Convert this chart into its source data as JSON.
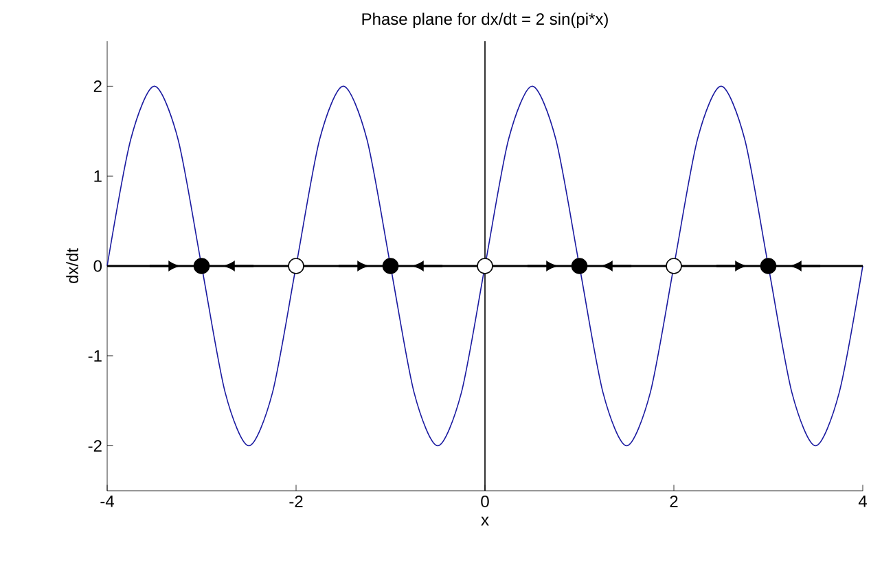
{
  "chart_data": {
    "type": "line",
    "title": "Phase plane for dx/dt = 2 sin(pi*x)",
    "xlabel": "x",
    "ylabel": "dx/dt",
    "xlim": [
      -4,
      4
    ],
    "ylim": [
      -2.5,
      2.5
    ],
    "xticks": [
      -4,
      -2,
      0,
      2,
      4
    ],
    "yticks": [
      -2,
      -1,
      0,
      1,
      2
    ],
    "ref_lines": [
      {
        "axis": "x",
        "value": 0,
        "color": "#000000"
      }
    ],
    "series": [
      {
        "color": "#1a1aa0",
        "x": [
          -4,
          -3.75,
          -3.5,
          -3.25,
          -3,
          -2.75,
          -2.5,
          -2.25,
          -2,
          -1.75,
          -1.5,
          -1.25,
          -1,
          -0.75,
          -0.5,
          -0.25,
          0,
          0.25,
          0.5,
          0.75,
          1,
          1.25,
          1.5,
          1.75,
          2,
          2.25,
          2.5,
          2.75,
          3,
          3.25,
          3.5,
          3.75,
          4
        ],
        "values": [
          0,
          1.41,
          2,
          1.41,
          0,
          -1.41,
          -2,
          -1.41,
          0,
          1.41,
          2,
          1.41,
          0,
          -1.41,
          -2,
          -1.41,
          0,
          1.41,
          2,
          1.41,
          0,
          -1.41,
          -2,
          -1.41,
          0,
          1.41,
          2,
          1.41,
          0,
          -1.41,
          -2,
          -1.41,
          0
        ]
      },
      {
        "type": "scatter",
        "color": "#000000",
        "marker": "circle",
        "x": [
          -3,
          -1,
          1,
          3
        ],
        "values": [
          0,
          0,
          0,
          0
        ]
      },
      {
        "type": "scatter",
        "color": "#ffffff",
        "marker": "circle",
        "x": [
          -2,
          0,
          2
        ],
        "values": [
          0,
          0,
          0
        ]
      }
    ]
  }
}
